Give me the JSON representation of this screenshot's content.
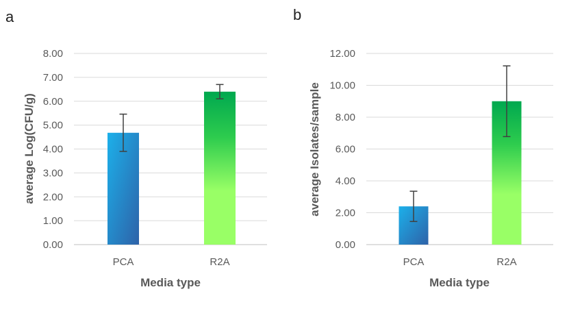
{
  "colors": {
    "grid": "#d9d9d9",
    "axis": "#bfbfbf",
    "error_bar": "#404040",
    "pca_gradient": [
      "#1cb0ea",
      "#2e62a8"
    ],
    "r2a_gradient": [
      "#00a84f",
      "#2ecc4e",
      "#99ff66"
    ]
  },
  "chart_data": [
    {
      "type": "bar",
      "panel_label": "a",
      "categories": [
        "PCA",
        "R2A"
      ],
      "values": [
        4.68,
        6.4
      ],
      "error": [
        0.78,
        0.3
      ],
      "xlabel": "Media type",
      "ylabel": "average Log(CFU/g)",
      "ylim": [
        0,
        8
      ],
      "yticks": [
        "0.00",
        "1.00",
        "2.00",
        "3.00",
        "4.00",
        "5.00",
        "6.00",
        "7.00",
        "8.00"
      ],
      "grid": true
    },
    {
      "type": "bar",
      "panel_label": "b",
      "categories": [
        "PCA",
        "R2A"
      ],
      "values": [
        2.4,
        9.0
      ],
      "error": [
        0.95,
        2.22
      ],
      "xlabel": "Media type",
      "ylabel": "average Isolates/sample",
      "ylim": [
        0,
        12
      ],
      "yticks": [
        "0.00",
        "2.00",
        "4.00",
        "6.00",
        "8.00",
        "10.00",
        "12.00"
      ],
      "grid": true
    }
  ]
}
